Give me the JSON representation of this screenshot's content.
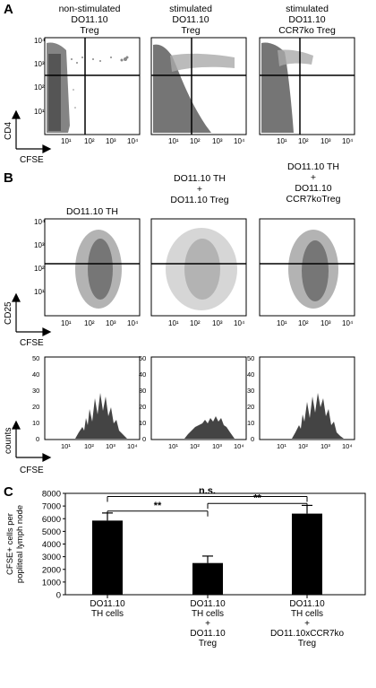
{
  "panel_letters": {
    "a": "A",
    "b": "B",
    "c": "C"
  },
  "panel_a": {
    "titles": [
      [
        "non-stimulated",
        "DO11.10",
        "Treg"
      ],
      [
        "stimulated",
        "DO11.10",
        "Treg"
      ],
      [
        "stimulated",
        "DO11.10",
        "CCR7ko Treg"
      ]
    ],
    "y_axis_label": "CD4",
    "x_axis_label": "CFSE",
    "tick_labels": [
      "10¹",
      "10²",
      "10³",
      "10⁴"
    ]
  },
  "panel_b": {
    "titles": [
      [
        "DO11.10 TH"
      ],
      [
        "DO11.10 TH",
        "+",
        "DO11.10 Treg"
      ],
      [
        "DO11.10 TH",
        "+",
        "DO11.10",
        "CCR7koTreg"
      ]
    ],
    "scatter_y_label": "CD25",
    "scatter_x_label": "CFSE",
    "hist_y_label": "counts",
    "hist_x_label": "CFSE",
    "tick_labels": [
      "10¹",
      "10²",
      "10³",
      "10⁴"
    ],
    "hist_y_ticks": [
      "0",
      "10",
      "20",
      "30",
      "40",
      "50"
    ]
  },
  "chart_data": {
    "type": "bar",
    "ylabel": "CFSE+ cells per popliteal lymph node",
    "ylim": [
      0,
      8000
    ],
    "yticks": [
      "0",
      "1000",
      "2000",
      "3000",
      "4000",
      "5000",
      "6000",
      "7000",
      "8000"
    ],
    "categories": [
      "DO11.10 TH cells",
      "DO11.10 TH cells + DO11.10 Treg",
      "DO11.10 TH cells + DO11.10xCCR7ko Treg"
    ],
    "category_lines": [
      [
        "DO11.10",
        "TH cells"
      ],
      [
        "DO11.10",
        "TH cells",
        "+",
        "DO11.10",
        "Treg"
      ],
      [
        "DO11.10",
        "TH cells",
        "+",
        "DO11.10xCCR7ko",
        "Treg"
      ]
    ],
    "values": [
      5850,
      2500,
      6400
    ],
    "errors": [
      600,
      550,
      650
    ],
    "annotations": {
      "sig1": "**",
      "sig2": "**",
      "ns": "n.s."
    }
  }
}
